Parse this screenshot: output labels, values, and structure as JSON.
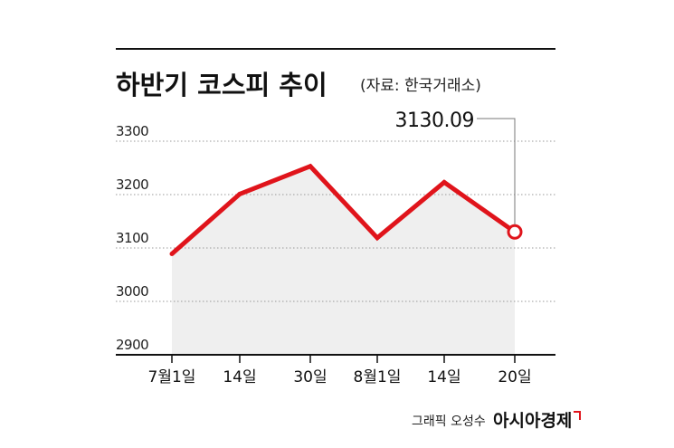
{
  "title": "하반기 코스피 추이",
  "source_note": "(자료: 한국거래소)",
  "credit": "그래픽 오성수",
  "brand": "아시아경제",
  "colors": {
    "line": "#e0141b",
    "area": "#efefef",
    "grid": "#9a9a9a"
  },
  "chart_data": {
    "type": "line",
    "title": "하반기 코스피 추이",
    "categories": [
      "7월1일",
      "14일",
      "30일",
      "8월1일",
      "14일",
      "20일"
    ],
    "values": [
      3089,
      3201,
      3253,
      3119,
      3223,
      3130.09
    ],
    "ylim": [
      2900,
      3300
    ],
    "yticks": [
      "2900",
      "3000",
      "3100",
      "3200",
      "3300"
    ],
    "last_value_label": "3130.09",
    "grid": true,
    "legend": "none"
  }
}
